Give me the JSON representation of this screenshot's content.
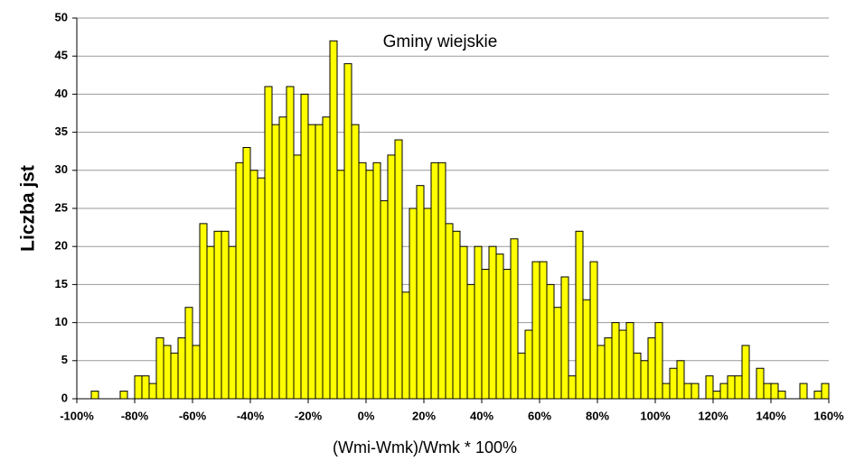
{
  "chart_data": {
    "type": "histogram",
    "annotation": "Gminy wiejskie",
    "xlabel": "(Wmi-Wmk)/Wmk * 100%",
    "ylabel": "Liczba jst",
    "color": "#ffff00",
    "grid": true,
    "bins": [
      -100,
      -97.5,
      -95,
      -92.5,
      -90,
      -87.5,
      -85,
      -82.5,
      -80,
      -77.5,
      -75,
      -72.5,
      -70,
      -67.5,
      -65,
      -62.5,
      -60,
      -57.5,
      -55,
      -52.5,
      -50,
      -47.5,
      -45,
      -42.5,
      -40,
      -37.5,
      -35,
      -32.5,
      -30,
      -27.5,
      -25,
      -22.5,
      -20,
      -17.5,
      -15,
      -12.5,
      -10,
      -7.5,
      -5,
      -2.5,
      0,
      2.5,
      5,
      7.5,
      10,
      12.5,
      15,
      17.5,
      20,
      22.5,
      25,
      27.5,
      30,
      32.5,
      35,
      37.5,
      40,
      42.5,
      45,
      47.5,
      50,
      52.5,
      55,
      57.5,
      60,
      62.5,
      65,
      67.5,
      70,
      72.5,
      75,
      77.5,
      80,
      82.5,
      85,
      87.5,
      90,
      92.5,
      95,
      97.5,
      100,
      102.5,
      105,
      107.5,
      110,
      112.5,
      115,
      117.5,
      120,
      122.5,
      125,
      127.5,
      130,
      132.5,
      135,
      137.5,
      140,
      142.5,
      145,
      147.5,
      150,
      152.5,
      155,
      157.5,
      160
    ],
    "values": [
      0,
      0,
      1,
      0,
      0,
      0,
      1,
      0,
      3,
      3,
      2,
      8,
      7,
      6,
      8,
      12,
      7,
      23,
      20,
      22,
      22,
      20,
      31,
      33,
      30,
      29,
      41,
      36,
      37,
      41,
      32,
      40,
      36,
      36,
      37,
      47,
      30,
      44,
      36,
      31,
      30,
      31,
      26,
      32,
      34,
      14,
      25,
      28,
      25,
      31,
      31,
      23,
      22,
      20,
      15,
      20,
      17,
      20,
      19,
      17,
      21,
      6,
      9,
      18,
      18,
      15,
      12,
      16,
      3,
      22,
      13,
      18,
      7,
      8,
      10,
      9,
      10,
      6,
      5,
      8,
      10,
      2,
      4,
      5,
      2,
      2,
      0,
      3,
      1,
      2,
      3,
      3,
      7,
      0,
      4,
      2,
      2,
      1,
      0,
      0,
      2,
      0,
      1,
      2
    ],
    "xlim": [
      -100,
      160
    ],
    "xticks": [
      {
        "value": -100,
        "label": "-100%"
      },
      {
        "value": -80,
        "label": "-80%"
      },
      {
        "value": -60,
        "label": "-60%"
      },
      {
        "value": -40,
        "label": "-40%"
      },
      {
        "value": -20,
        "label": "-20%"
      },
      {
        "value": 0,
        "label": "0%"
      },
      {
        "value": 20,
        "label": "20%"
      },
      {
        "value": 40,
        "label": "40%"
      },
      {
        "value": 60,
        "label": "60%"
      },
      {
        "value": 80,
        "label": "80%"
      },
      {
        "value": 100,
        "label": "100%"
      },
      {
        "value": 120,
        "label": "120%"
      },
      {
        "value": 140,
        "label": "140%"
      },
      {
        "value": 160,
        "label": "160%"
      }
    ],
    "ylim": [
      0,
      50
    ],
    "yticks": [
      0,
      5,
      10,
      15,
      20,
      25,
      30,
      35,
      40,
      45,
      50
    ]
  }
}
